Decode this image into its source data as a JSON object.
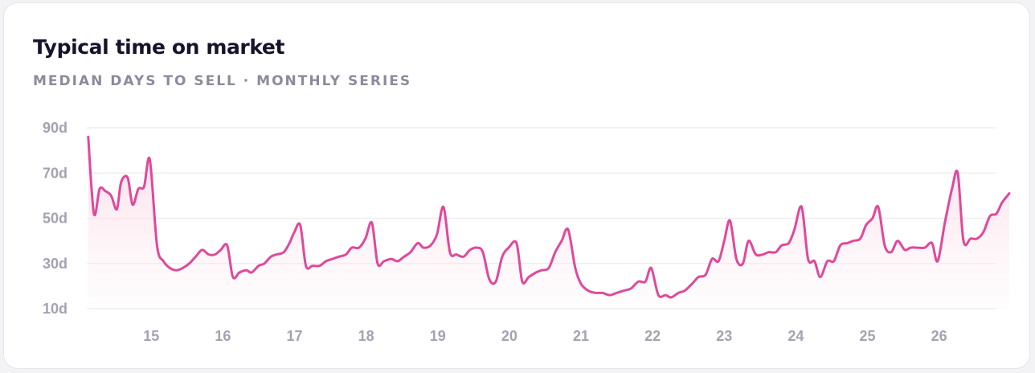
{
  "card": {
    "title": "Typical time on market",
    "subtitle": "MEDIAN DAYS TO SELL · MONTHLY SERIES"
  },
  "colors": {
    "line": "#e0489a",
    "grid": "#ecebf0",
    "area": "#fbd6e2",
    "ticks": "#a4a2b2"
  },
  "chart_data": {
    "type": "area",
    "title": "Typical time on market",
    "subtitle": "MEDIAN DAYS TO SELL · MONTHLY SERIES",
    "xlim": [
      2014.1,
      2026.8
    ],
    "ylim": [
      10,
      90
    ],
    "y_ticks": [
      {
        "value": 90,
        "label": "90d"
      },
      {
        "value": 70,
        "label": "70d"
      },
      {
        "value": 50,
        "label": "50d"
      },
      {
        "value": 30,
        "label": "30d"
      },
      {
        "value": 10,
        "label": "10d"
      }
    ],
    "x_ticks": [
      {
        "value": 2015,
        "label": "15"
      },
      {
        "value": 2016,
        "label": "16"
      },
      {
        "value": 2017,
        "label": "17"
      },
      {
        "value": 2018,
        "label": "18"
      },
      {
        "value": 2019,
        "label": "19"
      },
      {
        "value": 2020,
        "label": "20"
      },
      {
        "value": 2021,
        "label": "21"
      },
      {
        "value": 2022,
        "label": "22"
      },
      {
        "value": 2023,
        "label": "23"
      },
      {
        "value": 2024,
        "label": "24"
      },
      {
        "value": 2025,
        "label": "25"
      },
      {
        "value": 2026,
        "label": "26"
      }
    ],
    "grid": true,
    "legend": "none",
    "series": [
      {
        "points": [
          [
            2014.12,
            86
          ],
          [
            2014.2,
            52
          ],
          [
            2014.28,
            63
          ],
          [
            2014.36,
            62
          ],
          [
            2014.44,
            60
          ],
          [
            2014.52,
            54
          ],
          [
            2014.58,
            66
          ],
          [
            2014.67,
            68
          ],
          [
            2014.74,
            56
          ],
          [
            2014.82,
            63
          ],
          [
            2014.9,
            64
          ],
          [
            2014.98,
            76
          ],
          [
            2015.08,
            38
          ],
          [
            2015.17,
            31
          ],
          [
            2015.26,
            28
          ],
          [
            2015.35,
            27
          ],
          [
            2015.44,
            28
          ],
          [
            2015.53,
            30
          ],
          [
            2015.62,
            33
          ],
          [
            2015.71,
            36
          ],
          [
            2015.8,
            34
          ],
          [
            2015.89,
            34
          ],
          [
            2015.97,
            36
          ],
          [
            2016.06,
            38
          ],
          [
            2016.14,
            24
          ],
          [
            2016.23,
            26
          ],
          [
            2016.33,
            27
          ],
          [
            2016.4,
            26
          ],
          [
            2016.5,
            29
          ],
          [
            2016.58,
            30
          ],
          [
            2016.67,
            33
          ],
          [
            2016.75,
            34
          ],
          [
            2016.85,
            35
          ],
          [
            2016.93,
            39
          ],
          [
            2017.0,
            44
          ],
          [
            2017.08,
            47
          ],
          [
            2017.16,
            29
          ],
          [
            2017.25,
            29
          ],
          [
            2017.35,
            29
          ],
          [
            2017.44,
            31
          ],
          [
            2017.53,
            32
          ],
          [
            2017.62,
            33
          ],
          [
            2017.72,
            34
          ],
          [
            2017.8,
            37
          ],
          [
            2017.9,
            37
          ],
          [
            2017.99,
            41
          ],
          [
            2018.08,
            48
          ],
          [
            2018.16,
            30
          ],
          [
            2018.25,
            31
          ],
          [
            2018.35,
            32
          ],
          [
            2018.44,
            31
          ],
          [
            2018.53,
            33
          ],
          [
            2018.62,
            35
          ],
          [
            2018.72,
            39
          ],
          [
            2018.8,
            37
          ],
          [
            2018.9,
            38
          ],
          [
            2018.99,
            43
          ],
          [
            2019.08,
            55
          ],
          [
            2019.17,
            35
          ],
          [
            2019.26,
            34
          ],
          [
            2019.36,
            33
          ],
          [
            2019.45,
            36
          ],
          [
            2019.55,
            37
          ],
          [
            2019.63,
            35
          ],
          [
            2019.72,
            23
          ],
          [
            2019.81,
            22
          ],
          [
            2019.9,
            33
          ],
          [
            2019.99,
            37
          ],
          [
            2020.1,
            39
          ],
          [
            2020.18,
            22
          ],
          [
            2020.27,
            24
          ],
          [
            2020.37,
            26
          ],
          [
            2020.45,
            27
          ],
          [
            2020.55,
            28
          ],
          [
            2020.64,
            35
          ],
          [
            2020.73,
            40
          ],
          [
            2020.82,
            45
          ],
          [
            2020.92,
            28
          ],
          [
            2021.0,
            21
          ],
          [
            2021.1,
            18
          ],
          [
            2021.2,
            17
          ],
          [
            2021.3,
            17
          ],
          [
            2021.4,
            16
          ],
          [
            2021.5,
            17
          ],
          [
            2021.6,
            18
          ],
          [
            2021.7,
            19
          ],
          [
            2021.8,
            22
          ],
          [
            2021.9,
            22
          ],
          [
            2021.98,
            28
          ],
          [
            2022.08,
            16
          ],
          [
            2022.18,
            16
          ],
          [
            2022.26,
            15
          ],
          [
            2022.36,
            17
          ],
          [
            2022.45,
            18
          ],
          [
            2022.55,
            21
          ],
          [
            2022.64,
            24
          ],
          [
            2022.74,
            25
          ],
          [
            2022.83,
            32
          ],
          [
            2022.92,
            31
          ],
          [
            2023.0,
            40
          ],
          [
            2023.08,
            49
          ],
          [
            2023.17,
            32
          ],
          [
            2023.26,
            30
          ],
          [
            2023.34,
            40
          ],
          [
            2023.44,
            34
          ],
          [
            2023.54,
            34
          ],
          [
            2023.62,
            35
          ],
          [
            2023.72,
            35
          ],
          [
            2023.8,
            38
          ],
          [
            2023.9,
            39
          ],
          [
            2023.98,
            45
          ],
          [
            2024.08,
            55
          ],
          [
            2024.17,
            32
          ],
          [
            2024.26,
            31
          ],
          [
            2024.34,
            24
          ],
          [
            2024.44,
            31
          ],
          [
            2024.53,
            31
          ],
          [
            2024.62,
            38
          ],
          [
            2024.72,
            39
          ],
          [
            2024.8,
            40
          ],
          [
            2024.9,
            41
          ],
          [
            2024.98,
            47
          ],
          [
            2025.07,
            50
          ],
          [
            2025.15,
            55
          ],
          [
            2025.24,
            38
          ],
          [
            2025.33,
            35
          ],
          [
            2025.42,
            40
          ],
          [
            2025.52,
            36
          ],
          [
            2025.6,
            37
          ],
          [
            2025.7,
            37
          ],
          [
            2025.8,
            37
          ],
          [
            2025.9,
            39
          ],
          [
            2025.98,
            31
          ],
          [
            2026.08,
            48
          ],
          [
            2026.18,
            63
          ],
          [
            2026.26,
            70
          ],
          [
            2026.34,
            40
          ],
          [
            2026.44,
            41
          ],
          [
            2026.53,
            41
          ],
          [
            2026.62,
            44
          ],
          [
            2026.71,
            51
          ],
          [
            2026.8,
            52
          ],
          [
            2026.88,
            57
          ],
          [
            2026.98,
            61
          ]
        ]
      }
    ]
  }
}
